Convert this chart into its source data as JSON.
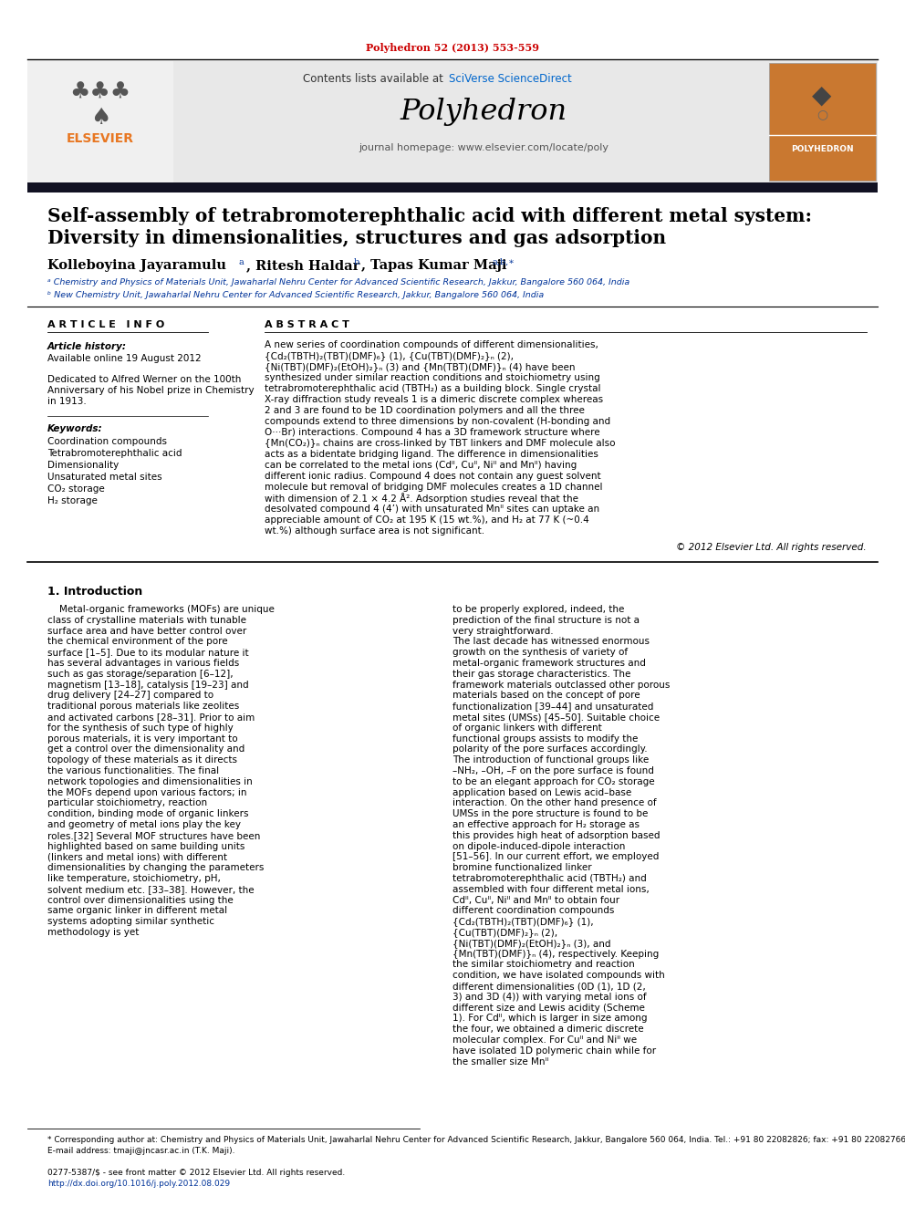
{
  "journal_ref": "Polyhedron 52 (2013) 553-559",
  "journal_name": "Polyhedron",
  "contents_line": "Contents lists available at SciVerse ScienceDirect",
  "sciverse_text": "SciVerse ScienceDirect",
  "journal_homepage": "journal homepage: www.elsevier.com/locate/poly",
  "title_line1": "Self-assembly of tetrabromoterephthalic acid with different metal system:",
  "title_line2": "Diversity in dimensionalities, structures and gas adsorption",
  "affil_a": "ᵃ Chemistry and Physics of Materials Unit, Jawaharlal Nehru Center for Advanced Scientific Research, Jakkur, Bangalore 560 064, India",
  "affil_b": "ᵇ New Chemistry Unit, Jawaharlal Nehru Center for Advanced Scientific Research, Jakkur, Bangalore 560 064, India",
  "article_info_header": "A R T I C L E   I N F O",
  "abstract_header": "A B S T R A C T",
  "article_history_label": "Article history:",
  "available_online": "Available online 19 August 2012",
  "dedicated_1": "Dedicated to Alfred Werner on the 100th",
  "dedicated_2": "Anniversary of his Nobel prize in Chemistry",
  "dedicated_3": "in 1913.",
  "keywords_label": "Keywords:",
  "keywords": [
    "Coordination compounds",
    "Tetrabromoterephthalic acid",
    "Dimensionality",
    "Unsaturated metal sites",
    "CO₂ storage",
    "H₂ storage"
  ],
  "abstract_text": "A new series of coordination compounds of different dimensionalities, {Cd₂(TBTH)₂(TBT)(DMF)₆} (1), {Cu(TBT)(DMF)₂}ₙ (2), {Ni(TBT)(DMF)₂(EtOH)₂}ₙ (3) and {Mn(TBT)(DMF)}ₙ (4) have been synthesized under similar reaction conditions and stoichiometry using tetrabromoterephthalic acid (TBTH₂) as a building block. Single crystal X-ray diffraction study reveals 1 is a dimeric discrete complex whereas 2 and 3 are found to be 1D coordination polymers and all the three compounds extend to three dimensions by non-covalent (H-bonding and O···Br) interactions. Compound 4 has a 3D framework structure where {Mn(CO₂)}ₙ chains are cross-linked by TBT linkers and DMF molecule also acts as a bidentate bridging ligand. The difference in dimensionalities can be correlated to the metal ions (Cdᴵᴵ, Cuᴵᴵ, Niᴵᴵ and Mnᴵᴵ) having different ionic radius. Compound 4 does not contain any guest solvent molecule but removal of bridging DMF molecules creates a 1D channel with dimension of 2.1 × 4.2 Å². Adsorption studies reveal that the desolvated compound 4 (4’) with unsaturated Mnᴵᴵ sites can uptake an appreciable amount of CO₂ at 195 K (15 wt.%), and H₂ at 77 K (~0.4 wt.%) although surface area is not significant.",
  "copyright": "© 2012 Elsevier Ltd. All rights reserved.",
  "intro_header": "1. Introduction",
  "intro_text_left": "Metal-organic frameworks (MOFs) are unique class of crystalline materials with tunable surface area and have better control over the chemical environment of the pore surface [1–5]. Due to its modular nature it has several advantages in various fields such as gas storage/separation [6–12], magnetism [13–18], catalysis [19–23] and drug delivery [24–27] compared to traditional porous materials like zeolites and activated carbons [28–31]. Prior to aim for the synthesis of such type of highly porous materials, it is very important to get a control over the dimensionality and topology of these materials as it directs the various functionalities. The final network topologies and dimensionalities in the MOFs depend upon various factors; in particular stoichiometry, reaction condition, binding mode of organic linkers and geometry of metal ions play the key roles.[32] Several MOF structures have been highlighted based on same building units (linkers and metal ions) with different dimensionalities by changing the parameters like temperature, stoichiometry, pH, solvent medium etc. [33–38]. However, the control over dimensionalities using the same organic linker in different metal systems adopting similar synthetic methodology is yet",
  "intro_text_right": "to be properly explored, indeed, the prediction of the final structure is not a very straightforward.\n    The last decade has witnessed enormous growth on the synthesis of variety of metal-organic framework structures and their gas storage characteristics. The framework materials outclassed other porous materials based on the concept of pore functionalization [39–44] and unsaturated metal sites (UMSs) [45–50]. Suitable choice of organic linkers with different functional groups assists to modify the polarity of the pore surfaces accordingly. The introduction of functional groups like –NH₂, –OH, –F on the pore surface is found to be an elegant approach for CO₂ storage application based on Lewis acid–base interaction. On the other hand presence of UMSs in the pore structure is found to be an effective approach for H₂ storage as this provides high heat of adsorption based on dipole-induced-dipole interaction [51–56]. In our current effort, we employed bromine functionalized linker  tetrabromoterephthalic acid (TBTH₂) and assembled with four different metal ions, Cdᴵᴵ, Cuᴵᴵ, Niᴵᴵ and Mnᴵᴵ to obtain four different coordination compounds {Cd₂(TBTH)₂(TBT)(DMF)₆} (1), {Cu(TBT)(DMF)₂}ₙ (2), {Ni(TBT)(DMF)₂(EtOH)₂}ₙ (3), and {Mn(TBT)(DMF)}ₙ (4), respectively. Keeping the similar stoichiometry and reaction condition, we have isolated compounds with different dimensionalities (0D (1), 1D (2, 3) and 3D (4)) with varying metal ions of different size and Lewis acidity (Scheme 1). For Cdᴵᴵ, which is larger in size among the four, we obtained a dimeric discrete molecular complex. For Cuᴵᴵ and Niᴵᴵ we have isolated 1D polymeric chain while for the smaller size Mnᴵᴵ",
  "footnote_star": "* Corresponding author at: Chemistry and Physics of Materials Unit, Jawaharlal Nehru Center for Advanced Scientific Research, Jakkur, Bangalore 560 064, India. Tel.: +91 80 22082826; fax: +91 80 22082766.",
  "footnote_email": "E-mail address: tmaji@jncasr.ac.in (T.K. Maji).",
  "issn_text": "0277-5387/$ - see front matter © 2012 Elsevier Ltd. All rights reserved.",
  "doi_text": "http://dx.doi.org/10.1016/j.poly.2012.08.029",
  "bg_color": "#ffffff",
  "elsevier_orange": "#e87722",
  "blue_link": "#003399",
  "sciverse_blue": "#0066cc",
  "journal_ref_color": "#cc0000"
}
